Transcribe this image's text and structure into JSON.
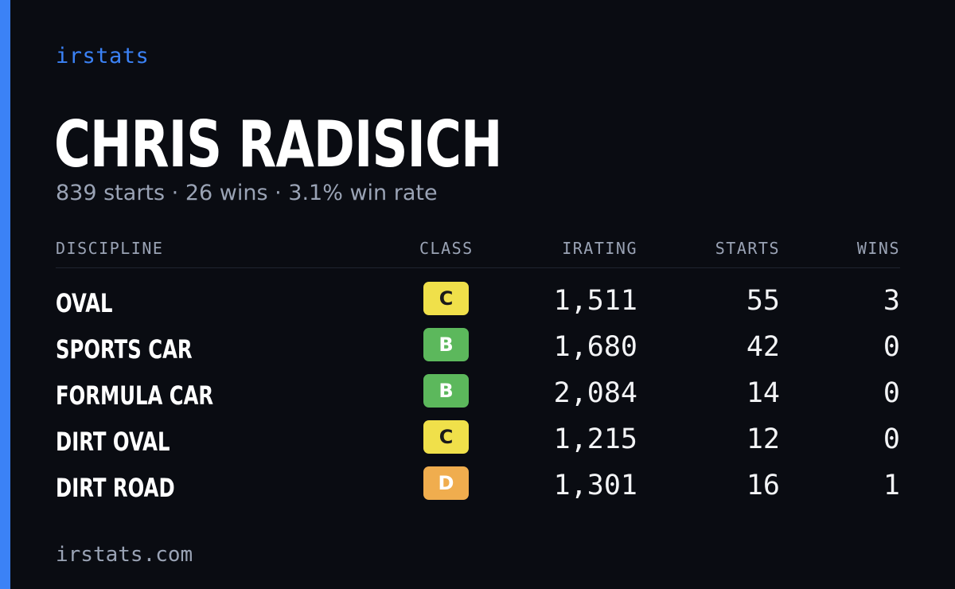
{
  "brand": "irstats",
  "driver": {
    "name": "CHRIS RADISICH",
    "summary": "839 starts · 26 wins · 3.1% win rate"
  },
  "table": {
    "headers": {
      "discipline": "DISCIPLINE",
      "class": "CLASS",
      "irating": "IRATING",
      "starts": "STARTS",
      "wins": "WINS"
    },
    "rows": [
      {
        "discipline": "OVAL",
        "class": "C",
        "class_color": "#f0e04a",
        "irating": "1,511",
        "starts": "55",
        "wins": "3"
      },
      {
        "discipline": "SPORTS CAR",
        "class": "B",
        "class_color": "#5cb85c",
        "irating": "1,680",
        "starts": "42",
        "wins": "0"
      },
      {
        "discipline": "FORMULA CAR",
        "class": "B",
        "class_color": "#5cb85c",
        "irating": "2,084",
        "starts": "14",
        "wins": "0"
      },
      {
        "discipline": "DIRT OVAL",
        "class": "C",
        "class_color": "#f0e04a",
        "irating": "1,215",
        "starts": "12",
        "wins": "0"
      },
      {
        "discipline": "DIRT ROAD",
        "class": "D",
        "class_color": "#f0ad4e",
        "irating": "1,301",
        "starts": "16",
        "wins": "1"
      }
    ]
  },
  "footer": "irstats.com",
  "colors": {
    "accent": "#3b82f6",
    "background": "#0a0c12",
    "muted_text": "#9aa3b5"
  }
}
